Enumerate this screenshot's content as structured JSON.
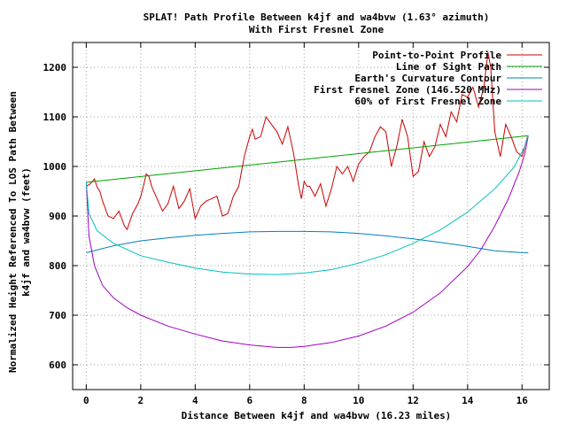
{
  "chart_data": {
    "type": "line",
    "title": "SPLAT! Path Profile Between k4jf and wa4bvw (1.63° azimuth)",
    "subtitle": "With First Fresnel Zone",
    "xlabel": "Distance Between k4jf and wa4bvw (16.23 miles)",
    "ylabel_line1": "Normalized Height Referenced To LOS Path Between",
    "ylabel_line2": "k4jf and wa4bvw (feet)",
    "xlim": [
      -0.5,
      17
    ],
    "ylim": [
      550,
      1250
    ],
    "xticks": [
      0,
      2,
      4,
      6,
      8,
      10,
      12,
      14,
      16
    ],
    "yticks": [
      600,
      700,
      800,
      900,
      1000,
      1100,
      1200
    ],
    "grid": true,
    "legend_position": "top-right",
    "series": [
      {
        "name": "Point-to-Point Profile",
        "color": "#cc0000",
        "x": [
          0.0,
          0.15,
          0.3,
          0.4,
          0.5,
          0.6,
          0.8,
          1.0,
          1.2,
          1.4,
          1.5,
          1.7,
          1.9,
          2.0,
          2.1,
          2.2,
          2.3,
          2.4,
          2.6,
          2.8,
          3.0,
          3.2,
          3.4,
          3.6,
          3.8,
          4.0,
          4.2,
          4.4,
          4.6,
          4.8,
          5.0,
          5.2,
          5.4,
          5.6,
          5.8,
          6.0,
          6.1,
          6.2,
          6.4,
          6.6,
          6.8,
          7.0,
          7.2,
          7.4,
          7.6,
          7.8,
          7.9,
          8.0,
          8.1,
          8.2,
          8.4,
          8.6,
          8.8,
          9.0,
          9.2,
          9.4,
          9.6,
          9.8,
          10.0,
          10.2,
          10.4,
          10.6,
          10.8,
          11.0,
          11.2,
          11.4,
          11.6,
          11.8,
          12.0,
          12.2,
          12.4,
          12.6,
          12.8,
          13.0,
          13.2,
          13.4,
          13.6,
          13.8,
          14.0,
          14.2,
          14.4,
          14.6,
          14.75,
          14.85,
          15.0,
          15.2,
          15.4,
          15.6,
          15.8,
          16.0,
          16.2
        ],
        "y": [
          960,
          965,
          975,
          958,
          950,
          930,
          900,
          895,
          910,
          880,
          873,
          905,
          925,
          940,
          960,
          985,
          980,
          960,
          935,
          910,
          925,
          960,
          915,
          930,
          955,
          895,
          920,
          930,
          935,
          940,
          900,
          905,
          940,
          960,
          1020,
          1060,
          1075,
          1055,
          1060,
          1100,
          1085,
          1070,
          1045,
          1080,
          1030,
          960,
          935,
          970,
          960,
          960,
          940,
          965,
          920,
          955,
          1000,
          985,
          1000,
          970,
          1005,
          1020,
          1030,
          1060,
          1080,
          1070,
          1000,
          1040,
          1095,
          1060,
          980,
          990,
          1050,
          1020,
          1040,
          1085,
          1060,
          1110,
          1090,
          1145,
          1140,
          1160,
          1120,
          1160,
          1230,
          1200,
          1070,
          1020,
          1085,
          1060,
          1030,
          1020,
          1060
        ]
      },
      {
        "name": "Line of Sight Path",
        "color": "#00a000",
        "x": [
          0,
          16.23
        ],
        "y": [
          968,
          1062
        ]
      },
      {
        "name": "Earth's Curvature Contour",
        "color": "#0080c0",
        "x": [
          0,
          1,
          2,
          3,
          4,
          5,
          6,
          7,
          7.5,
          8,
          9,
          10,
          11,
          12,
          13,
          14,
          15,
          16,
          16.23
        ],
        "y": [
          826,
          840,
          850,
          856,
          861,
          865,
          868,
          869,
          869,
          869,
          868,
          865,
          860,
          854,
          847,
          839,
          830,
          826,
          826
        ]
      },
      {
        "name": "First Fresnel Zone (146.520 MHz)",
        "color": "#a000c0",
        "x": [
          0,
          0.1,
          0.3,
          0.6,
          1,
          1.5,
          2,
          3,
          4,
          5,
          6,
          7,
          7.5,
          8,
          9,
          10,
          11,
          12,
          13,
          14,
          14.5,
          15,
          15.5,
          15.9,
          16.1,
          16.23
        ],
        "y": [
          968,
          860,
          800,
          760,
          735,
          715,
          700,
          678,
          662,
          648,
          640,
          635,
          635,
          637,
          645,
          658,
          678,
          706,
          745,
          798,
          833,
          880,
          935,
          990,
          1025,
          1062
        ]
      },
      {
        "name": "60% of First Fresnel Zone",
        "color": "#00c0c0",
        "x": [
          0,
          0.1,
          0.4,
          1,
          2,
          3,
          4,
          5,
          6,
          7,
          8,
          9,
          10,
          11,
          12,
          13,
          14,
          15,
          15.7,
          16.1,
          16.23
        ],
        "y": [
          968,
          905,
          870,
          845,
          820,
          807,
          795,
          787,
          783,
          782,
          785,
          792,
          805,
          822,
          845,
          872,
          908,
          955,
          998,
          1040,
          1062
        ]
      }
    ]
  }
}
